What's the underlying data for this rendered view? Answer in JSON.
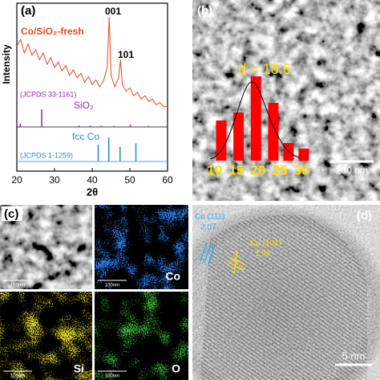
{
  "chart_data": [
    {
      "type": "line",
      "panel_label": "(a)",
      "xlabel": "2θ",
      "ylabel": "Intensity",
      "xlim": [
        20,
        60
      ],
      "xticks": [
        20,
        30,
        40,
        50,
        60
      ],
      "ylim": [
        0,
        100
      ],
      "series": [
        {
          "name": "Co/SiO₂-fresh",
          "color": "#e8491d",
          "x": [
            20,
            21,
            22,
            23,
            24,
            25,
            26,
            27,
            28,
            29,
            30,
            31,
            32,
            33,
            34,
            35,
            36,
            37,
            38,
            39,
            40,
            41,
            42,
            43,
            44,
            44.5,
            45,
            46,
            47,
            47.5,
            48,
            49,
            50,
            51,
            52,
            53,
            54,
            55,
            56,
            57,
            58,
            59,
            60
          ],
          "values": [
            66,
            72,
            60,
            68,
            58,
            63,
            54,
            60,
            50,
            56,
            47,
            52,
            44,
            49,
            40,
            45,
            38,
            42,
            34,
            39,
            32,
            36,
            30,
            35,
            48,
            92,
            40,
            30,
            38,
            54,
            32,
            26,
            29,
            22,
            25,
            19,
            22,
            17,
            19,
            14,
            16,
            12,
            13
          ]
        }
      ],
      "annotations": [
        "001",
        "101"
      ],
      "references": [
        {
          "name": "SiO₂",
          "source": "(JCPDS 33-1161)",
          "color": "#9c27b0",
          "x": [
            20.9,
            26.6,
            36.5,
            39.5,
            42.4,
            45.8,
            50.1,
            54.9,
            59.9
          ],
          "values": [
            20,
            100,
            8,
            8,
            6,
            6,
            14,
            6,
            10
          ]
        },
        {
          "name": "fcc Co",
          "source": "(JCPDS 1-1259)",
          "color": "#1f8fbf",
          "x": [
            41.6,
            44.4,
            47.4,
            51.6
          ],
          "values": [
            70,
            100,
            60,
            75
          ]
        }
      ]
    },
    {
      "type": "bar",
      "panel_label": "(b)",
      "annotation": "d = 18.6",
      "scale_bar": "200 nm",
      "x": [
        11.5,
        15.5,
        19.5,
        23.5,
        27,
        30.5
      ],
      "values": [
        50,
        60,
        105,
        72,
        22,
        15
      ],
      "xlim": [
        8,
        32
      ],
      "xticks": [
        10,
        15,
        20,
        25,
        30
      ],
      "ylim": [
        0,
        110
      ],
      "color": "#ff0000"
    }
  ],
  "panel_c": {
    "label": "(c)",
    "maps": [
      {
        "scale_bar": "100nm"
      },
      {
        "element": "Co",
        "scale_bar": "100nm"
      },
      {
        "element": "Si",
        "scale_bar": "100nm"
      },
      {
        "element": "O",
        "scale_bar": "100nm"
      }
    ]
  },
  "panel_d": {
    "label": "(d)",
    "annotations": [
      {
        "plane": "Co (111)",
        "spacing": "2.07"
      },
      {
        "plane": "Co (101)",
        "spacing": "1.93"
      }
    ],
    "scale_bar": "5 nm"
  }
}
